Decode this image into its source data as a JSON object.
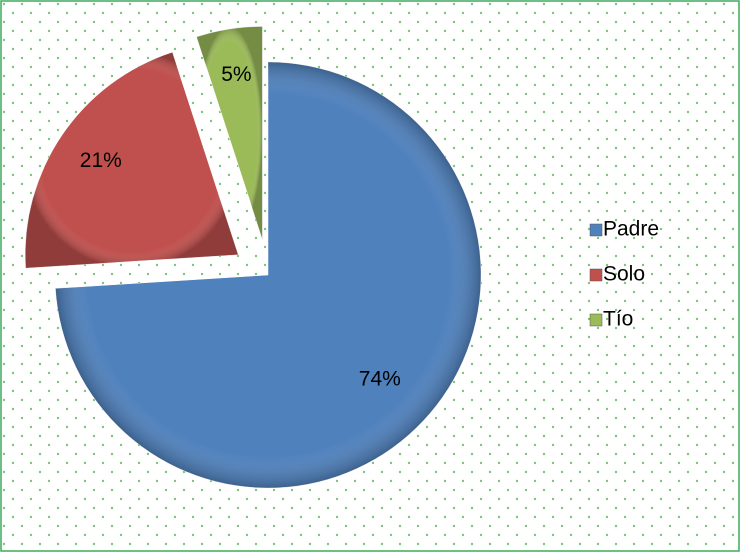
{
  "chart_data": {
    "type": "pie",
    "categories": [
      "Padre",
      "Solo",
      "Tío"
    ],
    "values": [
      74,
      21,
      5
    ],
    "value_labels": [
      "74%",
      "21%",
      "5%"
    ],
    "colors": [
      "#4f81bd",
      "#c0504d",
      "#9bbb59"
    ],
    "legend": "right"
  }
}
